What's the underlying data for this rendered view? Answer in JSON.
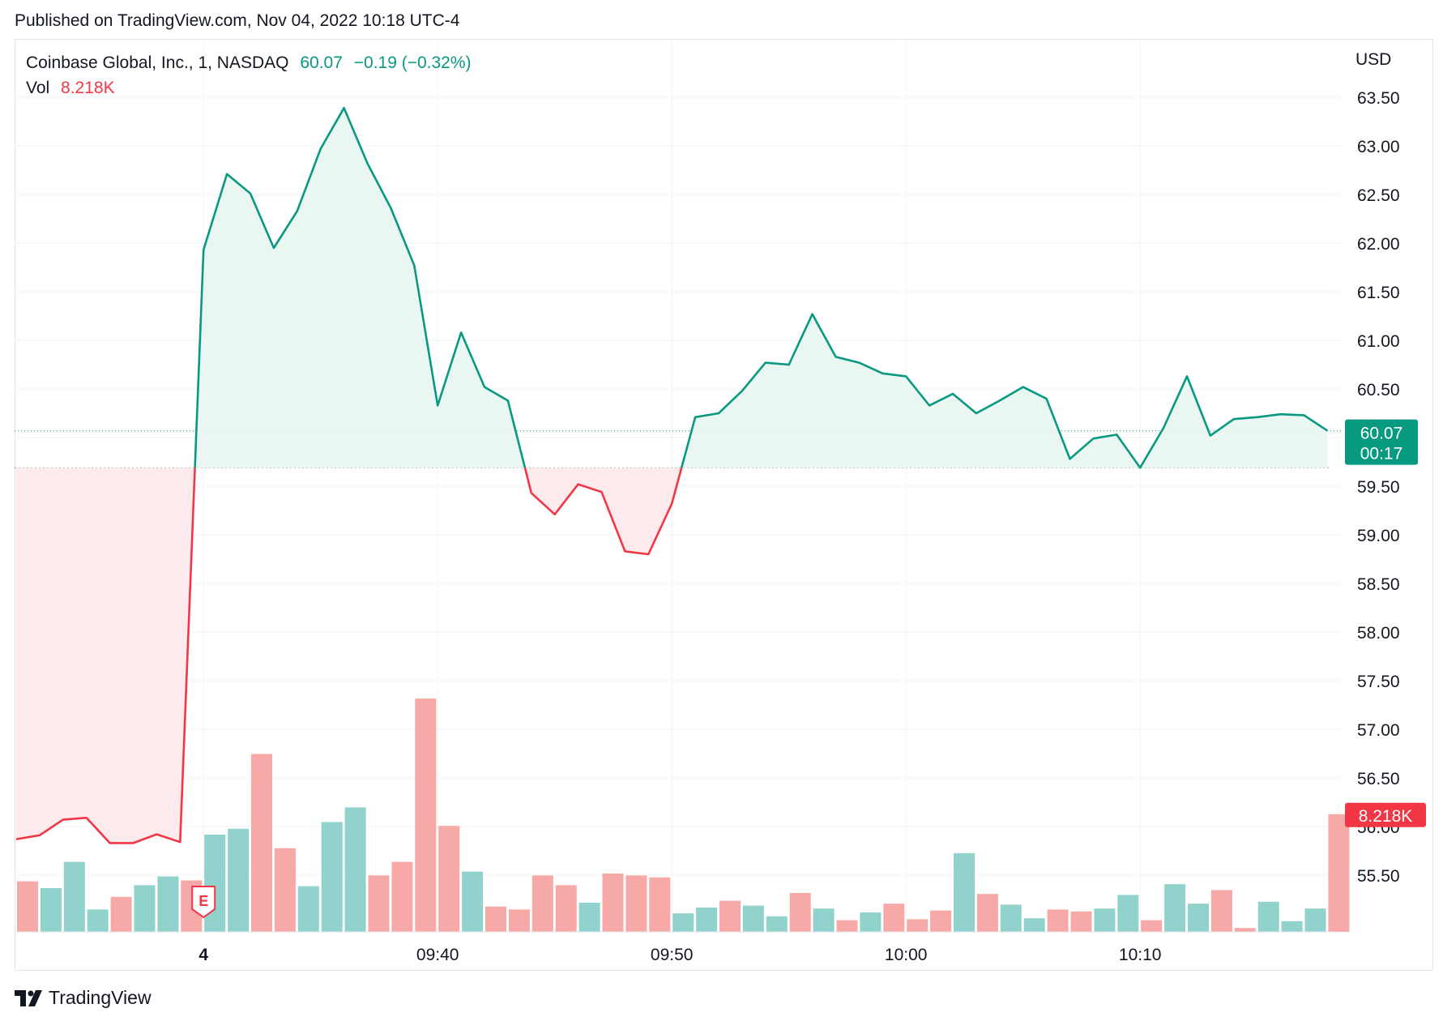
{
  "header": {
    "published": "Published on TradingView.com, Nov 04, 2022 10:18 UTC-4"
  },
  "legend": {
    "symbol": "Coinbase Global, Inc., 1, NASDAQ",
    "last": "60.07",
    "change": "−0.19 (−0.32%)",
    "vol_label": "Vol",
    "vol_value": "8.218K"
  },
  "price_axis": {
    "currency": "USD",
    "last_price_label": "60.07",
    "countdown_label": "00:17",
    "volume_label": "8.218K"
  },
  "earnings_marker": "E",
  "footer": {
    "brand": "TradingView"
  },
  "colors": {
    "up": "#089981",
    "down": "#f23645",
    "up_fill": "#e8f5f1",
    "down_fill": "#fde8ea",
    "vol_up": "#92d2cc",
    "vol_down": "#f7a9a7"
  },
  "chart_data": {
    "type": "area",
    "title": "Coinbase Global, Inc., 1, NASDAQ",
    "baseline": 59.69,
    "ylim": [
      55.2,
      63.65
    ],
    "y_ticks": [
      63.5,
      63.0,
      62.5,
      62.0,
      61.5,
      61.0,
      60.5,
      60.0,
      59.5,
      59.0,
      58.5,
      58.0,
      57.5,
      57.0,
      56.5,
      56.0,
      55.5
    ],
    "x_ticks": [
      {
        "label": "4",
        "bar": 8,
        "bold": true
      },
      {
        "label": "09:40",
        "bar": 18
      },
      {
        "label": "09:50",
        "bar": 28
      },
      {
        "label": "10:00",
        "bar": 38
      },
      {
        "label": "10:10",
        "bar": 48
      }
    ],
    "close": [
      55.87,
      55.91,
      56.07,
      56.09,
      55.83,
      55.83,
      55.92,
      55.84,
      61.93,
      62.71,
      62.51,
      61.95,
      62.33,
      62.97,
      63.39,
      62.82,
      62.36,
      61.77,
      60.33,
      61.08,
      60.52,
      60.38,
      59.43,
      59.21,
      59.52,
      59.44,
      58.83,
      58.8,
      59.32,
      60.21,
      60.25,
      60.48,
      60.77,
      60.75,
      61.27,
      60.83,
      60.77,
      60.66,
      60.63,
      60.33,
      60.45,
      60.25,
      60.38,
      60.52,
      60.4,
      59.78,
      59.99,
      60.03,
      59.69,
      60.1,
      60.63,
      60.02,
      60.19,
      60.21,
      60.24,
      60.23,
      60.07
    ],
    "volume_bars": [
      {
        "v": 0.52,
        "up": false
      },
      {
        "v": 0.45,
        "up": true
      },
      {
        "v": 0.72,
        "up": true
      },
      {
        "v": 0.23,
        "up": true
      },
      {
        "v": 0.36,
        "up": false
      },
      {
        "v": 0.48,
        "up": true
      },
      {
        "v": 0.57,
        "up": true
      },
      {
        "v": 0.53,
        "up": false
      },
      {
        "v": 1.0,
        "up": true
      },
      {
        "v": 1.06,
        "up": true
      },
      {
        "v": 1.83,
        "up": false
      },
      {
        "v": 0.86,
        "up": false
      },
      {
        "v": 0.47,
        "up": true
      },
      {
        "v": 1.13,
        "up": true
      },
      {
        "v": 1.28,
        "up": true
      },
      {
        "v": 0.58,
        "up": false
      },
      {
        "v": 0.72,
        "up": false
      },
      {
        "v": 2.4,
        "up": false
      },
      {
        "v": 1.09,
        "up": false
      },
      {
        "v": 0.62,
        "up": true
      },
      {
        "v": 0.26,
        "up": false
      },
      {
        "v": 0.23,
        "up": false
      },
      {
        "v": 0.58,
        "up": false
      },
      {
        "v": 0.48,
        "up": false
      },
      {
        "v": 0.3,
        "up": true
      },
      {
        "v": 0.6,
        "up": false
      },
      {
        "v": 0.58,
        "up": false
      },
      {
        "v": 0.56,
        "up": false
      },
      {
        "v": 0.19,
        "up": true
      },
      {
        "v": 0.25,
        "up": true
      },
      {
        "v": 0.32,
        "up": false
      },
      {
        "v": 0.27,
        "up": true
      },
      {
        "v": 0.16,
        "up": true
      },
      {
        "v": 0.4,
        "up": false
      },
      {
        "v": 0.24,
        "up": true
      },
      {
        "v": 0.12,
        "up": false
      },
      {
        "v": 0.2,
        "up": true
      },
      {
        "v": 0.29,
        "up": false
      },
      {
        "v": 0.13,
        "up": false
      },
      {
        "v": 0.22,
        "up": false
      },
      {
        "v": 0.81,
        "up": true
      },
      {
        "v": 0.39,
        "up": false
      },
      {
        "v": 0.28,
        "up": true
      },
      {
        "v": 0.14,
        "up": true
      },
      {
        "v": 0.23,
        "up": false
      },
      {
        "v": 0.21,
        "up": false
      },
      {
        "v": 0.24,
        "up": true
      },
      {
        "v": 0.38,
        "up": true
      },
      {
        "v": 0.12,
        "up": false
      },
      {
        "v": 0.49,
        "up": true
      },
      {
        "v": 0.29,
        "up": true
      },
      {
        "v": 0.43,
        "up": false
      },
      {
        "v": 0.04,
        "up": false
      },
      {
        "v": 0.31,
        "up": true
      },
      {
        "v": 0.11,
        "up": true
      },
      {
        "v": 0.24,
        "up": true
      },
      {
        "v": 1.21,
        "up": false
      }
    ],
    "volume_last": 8.218,
    "grid": true
  }
}
